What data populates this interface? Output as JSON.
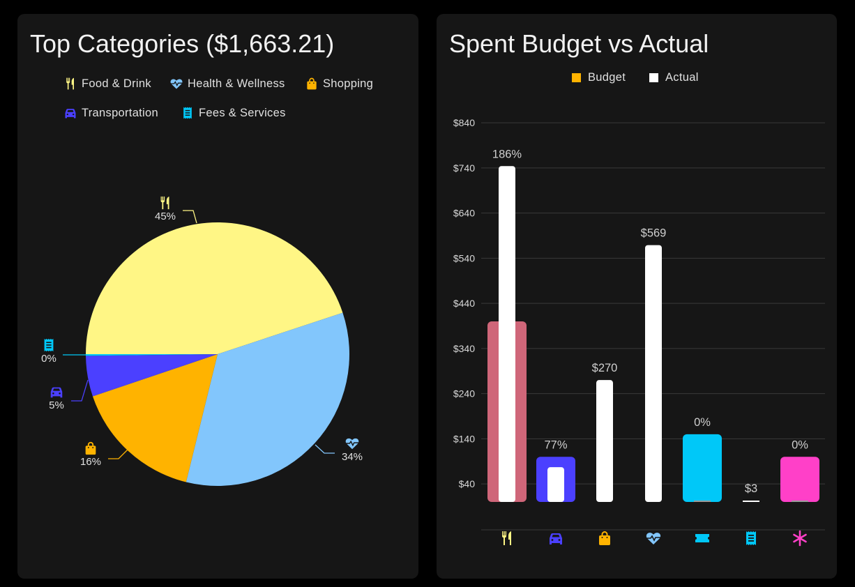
{
  "left_panel": {
    "title": "Top Categories ($1,663.21)",
    "legend": [
      {
        "label": "Food & Drink",
        "icon": "food-icon",
        "color": "#fff685"
      },
      {
        "label": "Health & Wellness",
        "icon": "heart-pulse-icon",
        "color": "#82c6fc"
      },
      {
        "label": "Shopping",
        "icon": "shopping-bag-icon",
        "color": "#ffb300"
      },
      {
        "label": "Transportation",
        "icon": "car-icon",
        "color": "#4b40ff"
      },
      {
        "label": "Fees & Services",
        "icon": "receipt-icon",
        "color": "#00c8f8"
      }
    ]
  },
  "right_panel": {
    "title": "Spent Budget vs Actual",
    "legend": [
      {
        "label": "Budget",
        "color": "#ffb300"
      },
      {
        "label": "Actual",
        "color": "#ffffff"
      }
    ]
  },
  "chart_data": [
    {
      "type": "pie",
      "title": "Top Categories ($1,663.21)",
      "slices": [
        {
          "category": "Food & Drink",
          "icon": "food-icon",
          "percent": 45,
          "label": "45%",
          "color": "#fff685"
        },
        {
          "category": "Health & Wellness",
          "icon": "heart-pulse-icon",
          "percent": 34,
          "label": "34%",
          "color": "#82c6fc"
        },
        {
          "category": "Shopping",
          "icon": "shopping-bag-icon",
          "percent": 16,
          "label": "16%",
          "color": "#ffb300"
        },
        {
          "category": "Transportation",
          "icon": "car-icon",
          "percent": 5,
          "label": "5%",
          "color": "#4b40ff"
        },
        {
          "category": "Fees & Services",
          "icon": "receipt-icon",
          "percent": 0.2,
          "label": "0%",
          "color": "#00c8f8"
        }
      ],
      "start": "left",
      "direction": "clockwise"
    },
    {
      "type": "bar",
      "title": "Spent Budget vs Actual",
      "legend": [
        "Budget",
        "Actual"
      ],
      "legend_placement": "top",
      "ylim": [
        0,
        840
      ],
      "yticks": [
        "$40",
        "$140",
        "$240",
        "$340",
        "$440",
        "$540",
        "$640",
        "$740",
        "$840"
      ],
      "ytick_values": [
        40,
        140,
        240,
        340,
        440,
        540,
        640,
        740,
        840
      ],
      "grid": true,
      "categories": [
        {
          "icon": "food-icon",
          "color": "#fff685",
          "budget": 400,
          "budget_color": "#cf6679",
          "actual": 744,
          "label": "186%"
        },
        {
          "icon": "car-icon",
          "color": "#4b40ff",
          "budget": 100,
          "budget_color": "#4b40ff",
          "actual": 77,
          "label": "77%"
        },
        {
          "icon": "shopping-bag-icon",
          "color": "#ffb300",
          "budget": 0,
          "budget_color": "#ffb300",
          "actual": 270,
          "label": "$270"
        },
        {
          "icon": "heart-pulse-icon",
          "color": "#82c6fc",
          "budget": 0,
          "budget_color": "#82c6fc",
          "actual": 569,
          "label": "$569"
        },
        {
          "icon": "ticket-icon",
          "color": "#00c8f8",
          "budget": 150,
          "budget_color": "#00c8f8",
          "actual": 0,
          "label": "0%"
        },
        {
          "icon": "receipt-icon",
          "color": "#00c8f8",
          "budget": 0,
          "budget_color": "#00c8f8",
          "actual": 3,
          "label": "$3"
        },
        {
          "icon": "asterisk-icon",
          "color": "#ff40c8",
          "budget": 100,
          "budget_color": "#ff40c8",
          "actual": 0,
          "label": "0%"
        }
      ]
    }
  ]
}
